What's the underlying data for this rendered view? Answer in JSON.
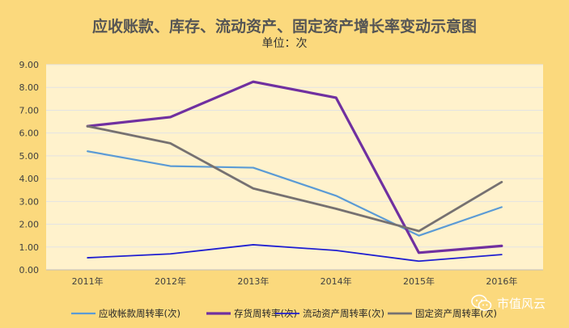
{
  "chart_data": {
    "type": "line",
    "title": "应收账款、库存、流动资产、固定资产增长率变动示意图",
    "subtitle": "单位：次",
    "categories": [
      "2011年",
      "2012年",
      "2013年",
      "2014年",
      "2015年",
      "2016年"
    ],
    "y_ticks": [
      "0.00",
      "1.00",
      "2.00",
      "3.00",
      "4.00",
      "5.00",
      "6.00",
      "7.00",
      "8.00",
      "9.00"
    ],
    "ylim": [
      0,
      9
    ],
    "grid": true,
    "legend_position": "bottom",
    "series": [
      {
        "name": "应收帐款周转率(次)",
        "color": "#5b9bd5",
        "values": [
          5.2,
          4.55,
          4.48,
          3.25,
          1.5,
          2.75
        ]
      },
      {
        "name": "存货周转率(次)",
        "color": "#7030a0",
        "values": [
          6.3,
          6.7,
          8.25,
          7.55,
          0.75,
          1.05
        ]
      },
      {
        "name": "流动资产周转率(次)",
        "color": "#1f1fd1",
        "values": [
          0.53,
          0.7,
          1.1,
          0.85,
          0.38,
          0.67
        ]
      },
      {
        "name": "固定资产周转率(次)",
        "color": "#767171",
        "values": [
          6.3,
          5.55,
          3.57,
          2.68,
          1.7,
          3.85
        ]
      }
    ]
  },
  "watermark": "市值风云"
}
